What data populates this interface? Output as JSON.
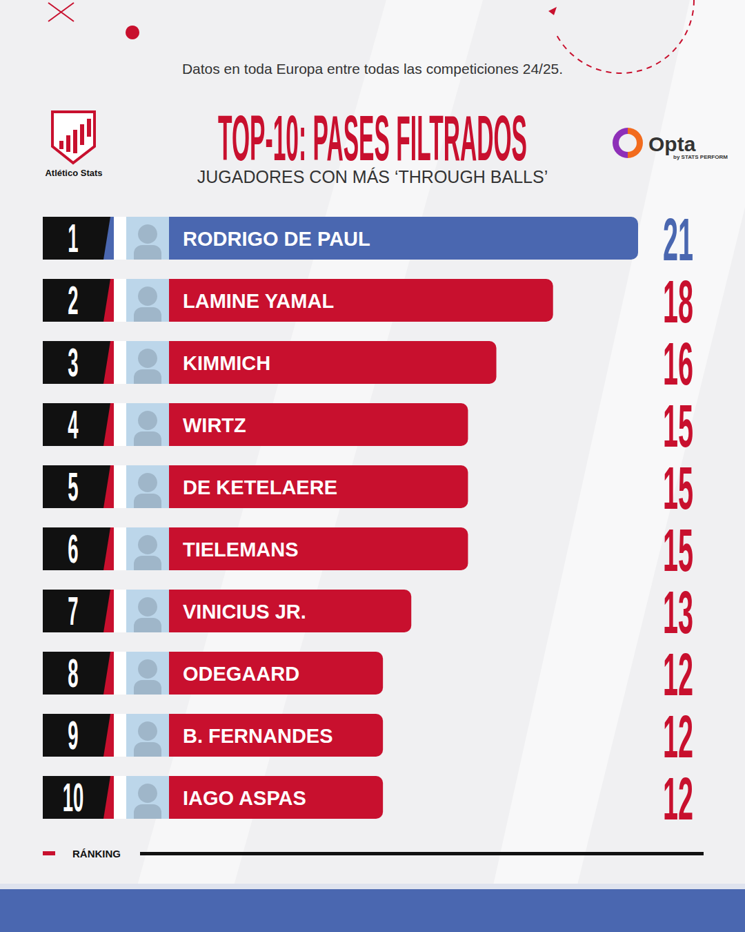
{
  "chart_data": {
    "type": "bar",
    "orientation": "horizontal",
    "title": "TOP-10: PASES FILTRADOS",
    "subtitle": "JUGADORES CON MÁS ‘THROUGH BALLS’",
    "note": "Datos en toda Europa entre todas las competiciones 24/25.",
    "ranks": [
      1,
      2,
      3,
      4,
      5,
      6,
      7,
      8,
      9,
      10
    ],
    "categories": [
      "RODRIGO DE PAUL",
      "LAMINE YAMAL",
      "KIMMICH",
      "WIRTZ",
      "DE KETELAERE",
      "TIELEMANS",
      "VINICIUS JR.",
      "ODEGAARD",
      "B. FERNANDES",
      "IAGO ASPAS"
    ],
    "values": [
      21,
      18,
      16,
      15,
      15,
      15,
      13,
      12,
      12,
      12
    ],
    "colors": [
      "#4a67b0",
      "#c8102e",
      "#c8102e",
      "#c8102e",
      "#c8102e",
      "#c8102e",
      "#c8102e",
      "#c8102e",
      "#c8102e",
      "#c8102e"
    ],
    "xlim": [
      0,
      21
    ],
    "data_labels": true,
    "tick_labels": false,
    "grid": false
  },
  "brands": {
    "left": "Atlético Stats",
    "right": "Opta",
    "right_credit": "by STATS PERFORM"
  },
  "footer": "RÁNKING"
}
